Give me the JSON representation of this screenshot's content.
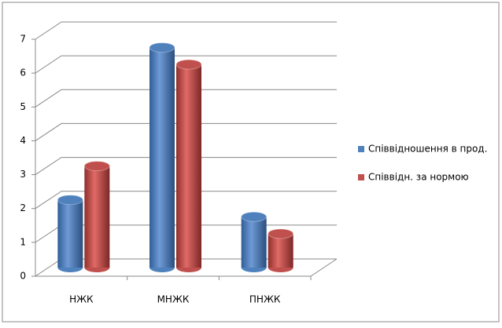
{
  "chart_data": {
    "type": "bar3d",
    "categories": [
      "НЖК",
      "МНЖК",
      "ПНЖК"
    ],
    "series": [
      {
        "name": "Співвідношення в прод.",
        "color": "#4f81bd",
        "values": [
          2,
          6.5,
          1.5
        ]
      },
      {
        "name": "Співвідн. за нормою",
        "color": "#c0504d",
        "values": [
          3,
          6,
          1
        ]
      }
    ],
    "ylim": [
      0,
      7
    ],
    "yticks": [
      0,
      1,
      2,
      3,
      4,
      5,
      6,
      7
    ],
    "grid": true,
    "legend": "right"
  }
}
